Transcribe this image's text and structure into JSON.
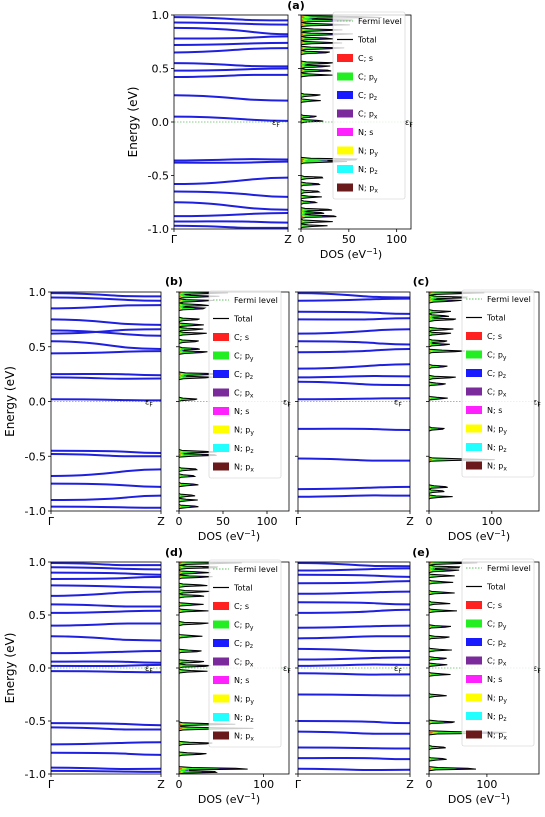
{
  "figure": {
    "panel_labels": [
      "(a)",
      "(b)",
      "(c)",
      "(d)",
      "(e)"
    ],
    "band_axis": {
      "ylabel": "Energy (eV)",
      "ylim": [
        -1.0,
        1.0
      ],
      "yticks": [
        "1.0",
        "0.5",
        "0.0",
        "-0.5",
        "-1.0"
      ],
      "xticks": [
        "Γ",
        "Z"
      ],
      "fermi_label": "εF"
    },
    "dos_axis": {
      "xlabel": "DOS (eV⁻¹)"
    },
    "legend": [
      {
        "label": "Fermi level",
        "color": "#5fbf5f",
        "kind": "dotted"
      },
      {
        "label": "Total",
        "color": "#000000",
        "kind": "line"
      },
      {
        "label": "C; s",
        "color": "#ff2020",
        "kind": "patch"
      },
      {
        "label": "C; py",
        "color": "#22ee22",
        "kind": "patch"
      },
      {
        "label": "C; pz",
        "color": "#1a1aff",
        "kind": "patch"
      },
      {
        "label": "C; px",
        "color": "#7a2a9a",
        "kind": "patch"
      },
      {
        "label": "N; s",
        "color": "#ff22ff",
        "kind": "patch"
      },
      {
        "label": "N; py",
        "color": "#ffff00",
        "kind": "patch"
      },
      {
        "label": "N; pz",
        "color": "#22ffff",
        "kind": "patch"
      },
      {
        "label": "N; px",
        "color": "#6a1a1a",
        "kind": "patch"
      }
    ]
  },
  "chart_data": [
    {
      "type": "line",
      "panel": "(a)",
      "subplot": "bands",
      "ylim": [
        -1.0,
        1.0
      ],
      "bands": [
        [
          0.98,
          0.95
        ],
        [
          0.93,
          0.91
        ],
        [
          0.88,
          0.82
        ],
        [
          0.78,
          0.8
        ],
        [
          0.72,
          0.74
        ],
        [
          0.65,
          0.69
        ],
        [
          0.55,
          0.52
        ],
        [
          0.48,
          0.5
        ],
        [
          0.42,
          0.44
        ],
        [
          0.25,
          0.2
        ],
        [
          0.05,
          0.01
        ],
        [
          -0.36,
          -0.35
        ],
        [
          -0.38,
          -0.37
        ],
        [
          -0.58,
          -0.52
        ],
        [
          -0.65,
          -0.7
        ],
        [
          -0.75,
          -0.82
        ],
        [
          -0.88,
          -0.85
        ],
        [
          -0.93,
          -0.94
        ],
        [
          -0.97,
          -0.99
        ]
      ]
    },
    {
      "type": "area",
      "panel": "(a)",
      "subplot": "dos",
      "xlim": [
        0,
        115
      ],
      "xticks": [
        0,
        50,
        100
      ],
      "ylim": [
        -1.0,
        1.0
      ],
      "total_peaks": [
        [
          0.98,
          98
        ],
        [
          0.95,
          70
        ],
        [
          0.91,
          55
        ],
        [
          0.86,
          48
        ],
        [
          0.82,
          62
        ],
        [
          0.78,
          40
        ],
        [
          0.74,
          45
        ],
        [
          0.69,
          50
        ],
        [
          0.65,
          38
        ],
        [
          0.55,
          42
        ],
        [
          0.52,
          35
        ],
        [
          0.48,
          40
        ],
        [
          0.44,
          34
        ],
        [
          0.25,
          25
        ],
        [
          0.2,
          22
        ],
        [
          0.05,
          20
        ],
        [
          0.01,
          28
        ],
        [
          -0.35,
          75
        ],
        [
          -0.37,
          50
        ],
        [
          -0.52,
          30
        ],
        [
          -0.58,
          26
        ],
        [
          -0.65,
          24
        ],
        [
          -0.7,
          22
        ],
        [
          -0.75,
          20
        ],
        [
          -0.82,
          40
        ],
        [
          -0.85,
          30
        ],
        [
          -0.88,
          50
        ],
        [
          -0.93,
          38
        ],
        [
          -0.97,
          28
        ]
      ]
    },
    {
      "type": "line",
      "panel": "(b)",
      "subplot": "bands",
      "ylim": [
        -1.0,
        1.0
      ],
      "bands": [
        [
          0.99,
          0.96
        ],
        [
          0.95,
          0.92
        ],
        [
          0.85,
          0.88
        ],
        [
          0.75,
          0.7
        ],
        [
          0.65,
          0.6
        ],
        [
          0.62,
          0.66
        ],
        [
          0.55,
          0.48
        ],
        [
          0.44,
          0.46
        ],
        [
          0.25,
          0.24
        ],
        [
          0.22,
          0.21
        ],
        [
          0.02,
          0.01
        ],
        [
          -0.45,
          -0.47
        ],
        [
          -0.48,
          -0.5
        ],
        [
          -0.68,
          -0.62
        ],
        [
          -0.75,
          -0.78
        ],
        [
          -0.9,
          -0.86
        ],
        [
          -0.96,
          -0.97
        ]
      ]
    },
    {
      "type": "area",
      "panel": "(b)",
      "subplot": "dos",
      "xlim": [
        0,
        125
      ],
      "xticks": [
        0,
        50,
        100
      ],
      "ylim": [
        -1.0,
        1.0
      ],
      "total_peaks": [
        [
          0.99,
          60
        ],
        [
          0.96,
          50
        ],
        [
          0.92,
          45
        ],
        [
          0.88,
          40
        ],
        [
          0.85,
          38
        ],
        [
          0.75,
          30
        ],
        [
          0.7,
          34
        ],
        [
          0.66,
          32
        ],
        [
          0.62,
          36
        ],
        [
          0.55,
          28
        ],
        [
          0.48,
          30
        ],
        [
          0.45,
          40
        ],
        [
          0.25,
          60
        ],
        [
          0.22,
          45
        ],
        [
          0.02,
          25
        ],
        [
          -0.46,
          50
        ],
        [
          -0.49,
          60
        ],
        [
          -0.62,
          26
        ],
        [
          -0.68,
          24
        ],
        [
          -0.76,
          28
        ],
        [
          -0.86,
          24
        ],
        [
          -0.9,
          22
        ],
        [
          -0.96,
          30
        ]
      ]
    },
    {
      "type": "line",
      "panel": "(c)",
      "subplot": "bands",
      "ylim": [
        -1.0,
        1.0
      ],
      "bands": [
        [
          0.99,
          0.95
        ],
        [
          0.92,
          0.94
        ],
        [
          0.82,
          0.8
        ],
        [
          0.75,
          0.76
        ],
        [
          0.62,
          0.66
        ],
        [
          0.55,
          0.52
        ],
        [
          0.45,
          0.48
        ],
        [
          0.3,
          0.34
        ],
        [
          0.22,
          0.23
        ],
        [
          0.18,
          0.15
        ],
        [
          0.02,
          0.03
        ],
        [
          -0.25,
          -0.26
        ],
        [
          -0.52,
          -0.54
        ],
        [
          -0.8,
          -0.78
        ],
        [
          -0.87,
          -0.86
        ]
      ]
    },
    {
      "type": "area",
      "panel": "(c)",
      "subplot": "dos",
      "xlim": [
        0,
        175
      ],
      "xticks": [
        0,
        100
      ],
      "ylim": [
        -1.0,
        1.0
      ],
      "total_peaks": [
        [
          0.99,
          95
        ],
        [
          0.95,
          80
        ],
        [
          0.92,
          60
        ],
        [
          0.82,
          40
        ],
        [
          0.78,
          38
        ],
        [
          0.75,
          55
        ],
        [
          0.66,
          45
        ],
        [
          0.62,
          40
        ],
        [
          0.55,
          36
        ],
        [
          0.52,
          38
        ],
        [
          0.46,
          70
        ],
        [
          0.32,
          34
        ],
        [
          0.22,
          50
        ],
        [
          0.16,
          36
        ],
        [
          0.03,
          34
        ],
        [
          -0.25,
          30
        ],
        [
          -0.53,
          110
        ],
        [
          -0.78,
          40
        ],
        [
          -0.82,
          30
        ],
        [
          -0.87,
          38
        ]
      ]
    },
    {
      "type": "line",
      "panel": "(d)",
      "subplot": "bands",
      "ylim": [
        -1.0,
        1.0
      ],
      "bands": [
        [
          0.99,
          0.97
        ],
        [
          0.95,
          0.93
        ],
        [
          0.9,
          0.88
        ],
        [
          0.84,
          0.86
        ],
        [
          0.78,
          0.76
        ],
        [
          0.68,
          0.72
        ],
        [
          0.6,
          0.58
        ],
        [
          0.52,
          0.54
        ],
        [
          0.4,
          0.42
        ],
        [
          0.3,
          0.26
        ],
        [
          0.14,
          0.16
        ],
        [
          0.06,
          0.05
        ],
        [
          0.02,
          0.03
        ],
        [
          -0.03,
          -0.04
        ],
        [
          -0.52,
          -0.54
        ],
        [
          -0.56,
          -0.58
        ],
        [
          -0.72,
          -0.7
        ],
        [
          -0.8,
          -0.82
        ],
        [
          -0.94,
          -0.95
        ],
        [
          -0.97,
          -0.98
        ]
      ]
    },
    {
      "type": "area",
      "panel": "(d)",
      "subplot": "dos",
      "xlim": [
        0,
        130
      ],
      "xticks": [
        0,
        100
      ],
      "ylim": [
        -1.0,
        1.0
      ],
      "total_peaks": [
        [
          0.99,
          80
        ],
        [
          0.95,
          60
        ],
        [
          0.9,
          48
        ],
        [
          0.86,
          44
        ],
        [
          0.78,
          40
        ],
        [
          0.72,
          42
        ],
        [
          0.68,
          36
        ],
        [
          0.6,
          34
        ],
        [
          0.54,
          36
        ],
        [
          0.42,
          40
        ],
        [
          0.3,
          30
        ],
        [
          0.16,
          36
        ],
        [
          0.06,
          40
        ],
        [
          0.02,
          45
        ],
        [
          -0.03,
          34
        ],
        [
          -0.53,
          70
        ],
        [
          -0.57,
          90
        ],
        [
          -0.71,
          50
        ],
        [
          -0.81,
          40
        ],
        [
          -0.95,
          100
        ],
        [
          -0.98,
          60
        ]
      ]
    },
    {
      "type": "line",
      "panel": "(e)",
      "subplot": "bands",
      "ylim": [
        -1.0,
        1.0
      ],
      "bands": [
        [
          0.99,
          0.96
        ],
        [
          0.92,
          0.94
        ],
        [
          0.88,
          0.86
        ],
        [
          0.8,
          0.82
        ],
        [
          0.7,
          0.72
        ],
        [
          0.62,
          0.6
        ],
        [
          0.52,
          0.55
        ],
        [
          0.38,
          0.4
        ],
        [
          0.28,
          0.3
        ],
        [
          0.18,
          0.16
        ],
        [
          0.08,
          0.1
        ],
        [
          0.02,
          0.03
        ],
        [
          -0.05,
          -0.06
        ],
        [
          -0.25,
          -0.26
        ],
        [
          -0.5,
          -0.52
        ],
        [
          -0.6,
          -0.62
        ],
        [
          -0.75,
          -0.76
        ],
        [
          -0.85,
          -0.86
        ],
        [
          -0.95,
          -0.96
        ]
      ]
    },
    {
      "type": "area",
      "panel": "(e)",
      "subplot": "dos",
      "xlim": [
        0,
        190
      ],
      "xticks": [
        0,
        100
      ],
      "ylim": [
        -1.0,
        1.0
      ],
      "total_peaks": [
        [
          0.99,
          90
        ],
        [
          0.95,
          70
        ],
        [
          0.92,
          60
        ],
        [
          0.87,
          50
        ],
        [
          0.81,
          45
        ],
        [
          0.71,
          48
        ],
        [
          0.61,
          40
        ],
        [
          0.54,
          50
        ],
        [
          0.39,
          44
        ],
        [
          0.29,
          42
        ],
        [
          0.17,
          40
        ],
        [
          0.09,
          38
        ],
        [
          0.03,
          36
        ],
        [
          -0.06,
          40
        ],
        [
          -0.26,
          34
        ],
        [
          -0.51,
          60
        ],
        [
          -0.61,
          175
        ],
        [
          -0.75,
          36
        ],
        [
          -0.86,
          40
        ],
        [
          -0.95,
          100
        ]
      ]
    }
  ]
}
